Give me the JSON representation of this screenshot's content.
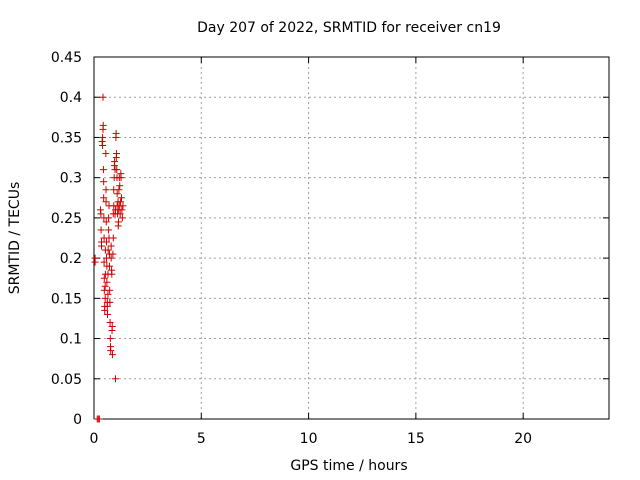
{
  "chart_data": {
    "type": "scatter",
    "title": "Day 207 of 2022, SRMTID for receiver cn19",
    "xlabel": "GPS time / hours",
    "ylabel": "SRMTID / TECUs",
    "xlim": [
      0,
      24
    ],
    "ylim": [
      0,
      0.45
    ],
    "xticks": [
      0,
      5,
      10,
      15,
      20
    ],
    "xtick_labels": [
      "0",
      "5",
      "10",
      "15",
      "20"
    ],
    "yticks": [
      0,
      0.05,
      0.1,
      0.15,
      0.2,
      0.25,
      0.3,
      0.35,
      0.4,
      0.45
    ],
    "ytick_labels": [
      "0",
      "0.05",
      "0.1",
      "0.15",
      "0.2",
      "0.25",
      "0.3",
      "0.35",
      "0.4",
      "0.45"
    ],
    "grid": true,
    "marker": "plus",
    "color": "#cc0000",
    "series": [
      {
        "points": [
          [
            0.05,
            0.2
          ],
          [
            0.05,
            0.195
          ],
          [
            0.15,
            0.0
          ],
          [
            0.2,
            0.0
          ],
          [
            0.25,
            0.0
          ],
          [
            0.3,
            0.26
          ],
          [
            0.32,
            0.255
          ],
          [
            0.33,
            0.235
          ],
          [
            0.35,
            0.22
          ],
          [
            0.35,
            0.215
          ],
          [
            0.38,
            0.345
          ],
          [
            0.4,
            0.35
          ],
          [
            0.4,
            0.34
          ],
          [
            0.42,
            0.4
          ],
          [
            0.42,
            0.36
          ],
          [
            0.43,
            0.365
          ],
          [
            0.44,
            0.31
          ],
          [
            0.45,
            0.295
          ],
          [
            0.45,
            0.275
          ],
          [
            0.46,
            0.25
          ],
          [
            0.47,
            0.225
          ],
          [
            0.47,
            0.195
          ],
          [
            0.48,
            0.175
          ],
          [
            0.48,
            0.16
          ],
          [
            0.5,
            0.14
          ],
          [
            0.5,
            0.135
          ],
          [
            0.52,
            0.15
          ],
          [
            0.52,
            0.165
          ],
          [
            0.53,
            0.18
          ],
          [
            0.53,
            0.21
          ],
          [
            0.55,
            0.33
          ],
          [
            0.56,
            0.285
          ],
          [
            0.56,
            0.27
          ],
          [
            0.57,
            0.245
          ],
          [
            0.58,
            0.22
          ],
          [
            0.58,
            0.2
          ],
          [
            0.6,
            0.19
          ],
          [
            0.6,
            0.17
          ],
          [
            0.62,
            0.145
          ],
          [
            0.62,
            0.14
          ],
          [
            0.63,
            0.13
          ],
          [
            0.65,
            0.155
          ],
          [
            0.65,
            0.18
          ],
          [
            0.66,
            0.21
          ],
          [
            0.68,
            0.235
          ],
          [
            0.68,
            0.25
          ],
          [
            0.7,
            0.265
          ],
          [
            0.7,
            0.225
          ],
          [
            0.72,
            0.205
          ],
          [
            0.72,
            0.19
          ],
          [
            0.73,
            0.16
          ],
          [
            0.74,
            0.145
          ],
          [
            0.75,
            0.12
          ],
          [
            0.76,
            0.1
          ],
          [
            0.77,
            0.09
          ],
          [
            0.78,
            0.085
          ],
          [
            0.8,
            0.2
          ],
          [
            0.8,
            0.215
          ],
          [
            0.82,
            0.185
          ],
          [
            0.83,
            0.18
          ],
          [
            0.84,
            0.11
          ],
          [
            0.85,
            0.115
          ],
          [
            0.86,
            0.08
          ],
          [
            0.88,
            0.205
          ],
          [
            0.9,
            0.225
          ],
          [
            0.9,
            0.255
          ],
          [
            0.92,
            0.265
          ],
          [
            0.92,
            0.285
          ],
          [
            0.94,
            0.3
          ],
          [
            0.95,
            0.315
          ],
          [
            0.96,
            0.32
          ],
          [
            0.98,
            0.31
          ],
          [
            0.98,
            0.255
          ],
          [
            1.0,
            0.26
          ],
          [
            1.0,
            0.05
          ],
          [
            1.02,
            0.35
          ],
          [
            1.03,
            0.355
          ],
          [
            1.04,
            0.325
          ],
          [
            1.05,
            0.33
          ],
          [
            1.06,
            0.31
          ],
          [
            1.07,
            0.3
          ],
          [
            1.08,
            0.28
          ],
          [
            1.08,
            0.265
          ],
          [
            1.1,
            0.255
          ],
          [
            1.12,
            0.27
          ],
          [
            1.13,
            0.24
          ],
          [
            1.14,
            0.245
          ],
          [
            1.15,
            0.26
          ],
          [
            1.16,
            0.285
          ],
          [
            1.18,
            0.3
          ],
          [
            1.2,
            0.29
          ],
          [
            1.2,
            0.265
          ],
          [
            1.22,
            0.255
          ],
          [
            1.24,
            0.27
          ],
          [
            1.25,
            0.305
          ],
          [
            1.26,
            0.3
          ],
          [
            1.28,
            0.275
          ],
          [
            1.3,
            0.26
          ],
          [
            1.32,
            0.25
          ],
          [
            1.35,
            0.265
          ]
        ]
      }
    ]
  }
}
